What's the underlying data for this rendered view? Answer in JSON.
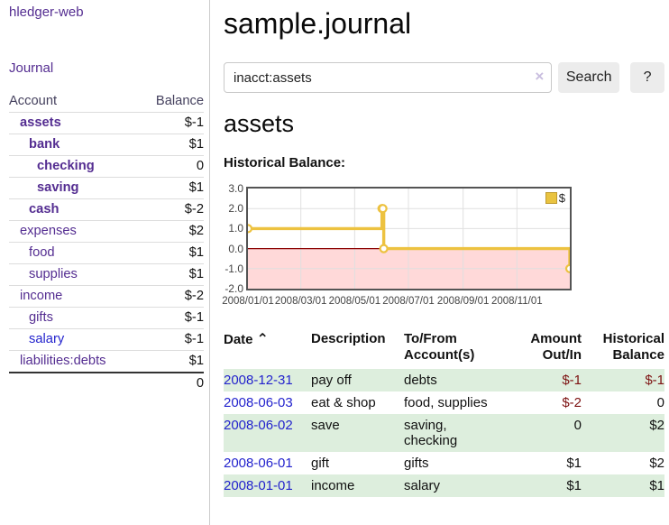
{
  "app": {
    "brand": "hledger-web",
    "nav": {
      "journal": "Journal"
    }
  },
  "colors": {
    "link_purple": "#542d91",
    "link_blue": "#2323cd",
    "negative_strong": "#7d0a00",
    "negative_soft": "#b26868",
    "row_green": "#ddeedd",
    "series_gold": "#EDC240",
    "below_zero_pink": "#ffd9d9",
    "zero_line_red": "#8b0000"
  },
  "sidebar": {
    "table": {
      "headers": {
        "account": "Account",
        "balance": "Balance"
      },
      "rows": [
        {
          "name": "assets",
          "balance": "$-1"
        },
        {
          "name": "bank",
          "balance": "$1"
        },
        {
          "name": "checking",
          "balance": "0"
        },
        {
          "name": "saving",
          "balance": "$1"
        },
        {
          "name": "cash",
          "balance": "$-2"
        },
        {
          "name": "expenses",
          "balance": "$2"
        },
        {
          "name": "food",
          "balance": "$1"
        },
        {
          "name": "supplies",
          "balance": "$1"
        },
        {
          "name": "income",
          "balance": "$-2"
        },
        {
          "name": "gifts",
          "balance": "$-1"
        },
        {
          "name": "salary",
          "balance": "$-1"
        },
        {
          "name": "liabilities:debts",
          "balance": "$1"
        }
      ],
      "total": "0"
    }
  },
  "main": {
    "title": "sample.journal",
    "search": {
      "value": "inacct:assets",
      "clear_icon": "×",
      "button": "Search",
      "help_button": "?"
    },
    "account_heading": "assets",
    "chart_label": "Historical Balance:"
  },
  "chart_data": {
    "type": "line",
    "step": true,
    "title": "Historical Balance:",
    "legend": "$",
    "legend_position": "top-right",
    "grid": true,
    "x_domain": [
      "2008/01/01",
      "2008/12/31"
    ],
    "ylim": [
      -2,
      3
    ],
    "ytick_values": [
      3,
      2,
      1,
      0,
      -1,
      -2
    ],
    "ytick_labels": [
      "3.0",
      "2.0",
      "1.0",
      "0.0",
      "-1.0",
      "-2.0"
    ],
    "xtick_labels": [
      "2008/01/01",
      "2008/03/01",
      "2008/05/01",
      "2008/07/01",
      "2008/09/01",
      "2008/11/01"
    ],
    "series": [
      {
        "name": "$",
        "color": "#EDC240",
        "points": [
          [
            "2008/01/01",
            1
          ],
          [
            "2008/06/01",
            2
          ],
          [
            "2008/06/02",
            2
          ],
          [
            "2008/06/03",
            0
          ],
          [
            "2008/12/31",
            -1
          ]
        ]
      }
    ],
    "below_zero_shading": "#ffd9d9",
    "zero_line_color": "#8b0000"
  },
  "transactions": {
    "headers": {
      "date": "Date",
      "description": "Description",
      "accounts": "To/From Account(s)",
      "amount": "Amount Out/In",
      "balance": "Historical Balance"
    },
    "sort_icon": "⌃",
    "rows": [
      {
        "date": "2008-12-31",
        "description": "pay off",
        "accounts": "debts",
        "amount": "$-1",
        "balance": "$-1"
      },
      {
        "date": "2008-06-03",
        "description": "eat & shop",
        "accounts": "food, supplies",
        "amount": "$-2",
        "balance": "0"
      },
      {
        "date": "2008-06-02",
        "description": "save",
        "accounts": "saving, checking",
        "amount": "0",
        "balance": "$2"
      },
      {
        "date": "2008-06-01",
        "description": "gift",
        "accounts": "gifts",
        "amount": "$1",
        "balance": "$2"
      },
      {
        "date": "2008-01-01",
        "description": "income",
        "accounts": "salary",
        "amount": "$1",
        "balance": "$1"
      }
    ]
  }
}
